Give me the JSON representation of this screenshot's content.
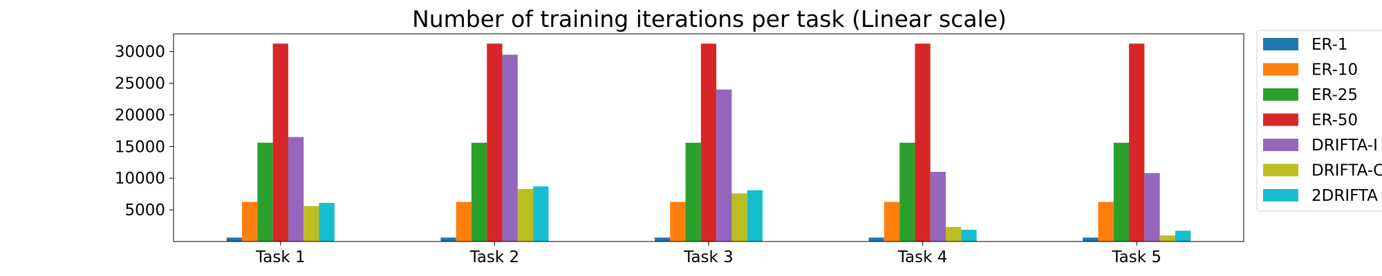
{
  "chart_data": {
    "type": "bar",
    "title": "Number of training iterations per task (Linear scale)",
    "xlabel": "",
    "ylabel": "",
    "categories": [
      "Task 1",
      "Task 2",
      "Task 3",
      "Task 4",
      "Task 5"
    ],
    "ylim": [
      0,
      32800
    ],
    "yticks": [
      5000,
      10000,
      15000,
      20000,
      25000,
      30000
    ],
    "grid": false,
    "legend_position": "outside-right",
    "series": [
      {
        "name": "ER-1",
        "color": "#1f77b4",
        "values": [
          625,
          625,
          625,
          625,
          625
        ]
      },
      {
        "name": "ER-10",
        "color": "#ff7f0e",
        "values": [
          6250,
          6250,
          6250,
          6250,
          6250
        ]
      },
      {
        "name": "ER-25",
        "color": "#2ca02c",
        "values": [
          15600,
          15600,
          15600,
          15600,
          15600
        ]
      },
      {
        "name": "ER-50",
        "color": "#d62728",
        "values": [
          31250,
          31250,
          31250,
          31250,
          31250
        ]
      },
      {
        "name": "DRIFTA-I",
        "color": "#9467bd",
        "values": [
          16500,
          29500,
          24000,
          11000,
          10800
        ]
      },
      {
        "name": "DRIFTA-C",
        "color": "#bcbd22",
        "values": [
          5600,
          8300,
          7600,
          2300,
          950
        ]
      },
      {
        "name": "2DRIFTA",
        "color": "#17becf",
        "values": [
          6100,
          8700,
          8100,
          1850,
          1700
        ]
      }
    ]
  }
}
